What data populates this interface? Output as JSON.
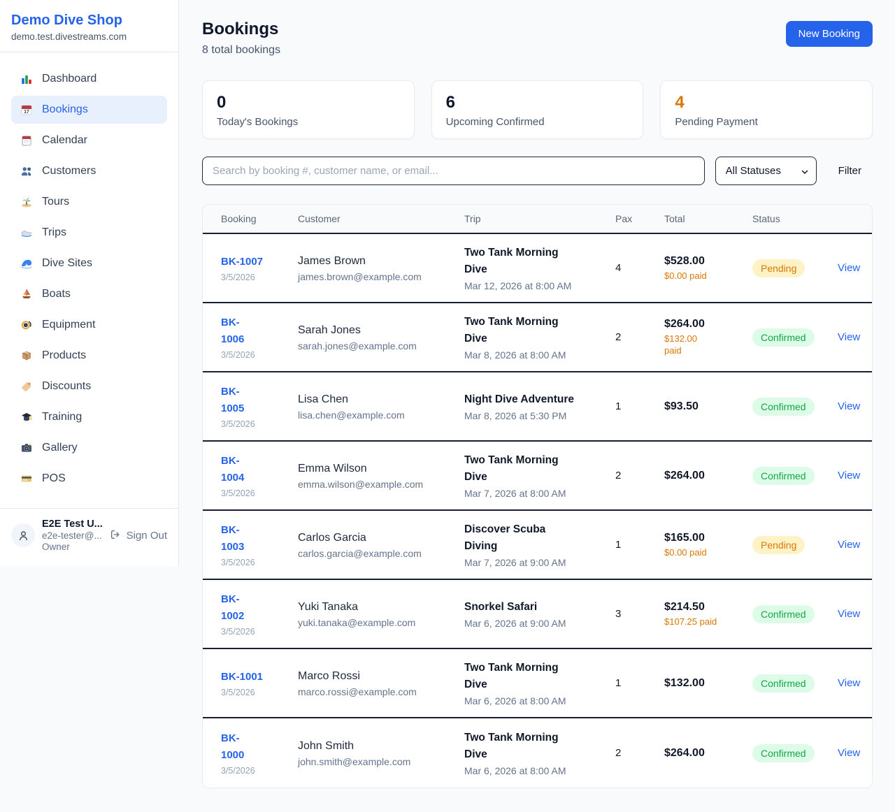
{
  "sidebar": {
    "brand": {
      "name": "Demo Dive Shop",
      "domain": "demo.test.divestreams.com"
    },
    "items": [
      {
        "label": "Dashboard",
        "icon": "dashboard",
        "active": false
      },
      {
        "label": "Bookings",
        "icon": "bookings",
        "active": true
      },
      {
        "label": "Calendar",
        "icon": "calendar",
        "active": false
      },
      {
        "label": "Customers",
        "icon": "customers",
        "active": false
      },
      {
        "label": "Tours",
        "icon": "tours",
        "active": false
      },
      {
        "label": "Trips",
        "icon": "trips",
        "active": false
      },
      {
        "label": "Dive Sites",
        "icon": "dive-sites",
        "active": false
      },
      {
        "label": "Boats",
        "icon": "boats",
        "active": false
      },
      {
        "label": "Equipment",
        "icon": "equipment",
        "active": false
      },
      {
        "label": "Products",
        "icon": "products",
        "active": false
      },
      {
        "label": "Discounts",
        "icon": "discounts",
        "active": false
      },
      {
        "label": "Training",
        "icon": "training",
        "active": false
      },
      {
        "label": "Gallery",
        "icon": "gallery",
        "active": false
      },
      {
        "label": "POS",
        "icon": "pos",
        "active": false
      }
    ],
    "user": {
      "name": "E2E Test U...",
      "email": "e2e-tester@...",
      "role": "Owner",
      "sign_out_label": "Sign Out"
    }
  },
  "header": {
    "title": "Bookings",
    "subtitle": "8 total bookings",
    "new_booking_label": "New Booking"
  },
  "stats": [
    {
      "value": "0",
      "label": "Today's Bookings",
      "value_color": "#0f172a"
    },
    {
      "value": "6",
      "label": "Upcoming Confirmed",
      "value_color": "#0f172a"
    },
    {
      "value": "4",
      "label": "Pending Payment",
      "value_color": "#d97706"
    }
  ],
  "filters": {
    "search_placeholder": "Search by booking #, customer name, or email...",
    "status_selected": "All Statuses",
    "filter_label": "Filter"
  },
  "table": {
    "columns": [
      "Booking",
      "Customer",
      "Trip",
      "Pax",
      "Total",
      "Status",
      ""
    ],
    "view_label": "View",
    "rows": [
      {
        "id": "BK-1007",
        "date": "3/5/2026",
        "customer": "James Brown",
        "email": "james.brown@example.com",
        "trip": "Two Tank Morning\nDive",
        "trip_time": "Mar 12, 2026 at 8:00 AM",
        "pax": "4",
        "total": "$528.00",
        "paid": "$0.00 paid",
        "status": "Pending"
      },
      {
        "id": "BK-\n1006",
        "date": "3/5/2026",
        "customer": "Sarah Jones",
        "email": "sarah.jones@example.com",
        "trip": "Two Tank Morning\nDive",
        "trip_time": "Mar 8, 2026 at 8:00 AM",
        "pax": "2",
        "total": "$264.00",
        "paid": "$132.00\npaid",
        "status": "Confirmed"
      },
      {
        "id": "BK-\n1005",
        "date": "3/5/2026",
        "customer": "Lisa Chen",
        "email": "lisa.chen@example.com",
        "trip": "Night Dive Adventure",
        "trip_time": "Mar 8, 2026 at 5:30 PM",
        "pax": "1",
        "total": "$93.50",
        "paid": null,
        "status": "Confirmed"
      },
      {
        "id": "BK-\n1004",
        "date": "3/5/2026",
        "customer": "Emma Wilson",
        "email": "emma.wilson@example.com",
        "trip": "Two Tank Morning\nDive",
        "trip_time": "Mar 7, 2026 at 8:00 AM",
        "pax": "2",
        "total": "$264.00",
        "paid": null,
        "status": "Confirmed"
      },
      {
        "id": "BK-\n1003",
        "date": "3/5/2026",
        "customer": "Carlos Garcia",
        "email": "carlos.garcia@example.com",
        "trip": "Discover Scuba\nDiving",
        "trip_time": "Mar 7, 2026 at 9:00 AM",
        "pax": "1",
        "total": "$165.00",
        "paid": "$0.00 paid",
        "status": "Pending"
      },
      {
        "id": "BK-\n1002",
        "date": "3/5/2026",
        "customer": "Yuki Tanaka",
        "email": "yuki.tanaka@example.com",
        "trip": "Snorkel Safari",
        "trip_time": "Mar 6, 2026 at 9:00 AM",
        "pax": "3",
        "total": "$214.50",
        "paid": "$107.25 paid",
        "status": "Confirmed"
      },
      {
        "id": "BK-1001",
        "date": "3/5/2026",
        "customer": "Marco Rossi",
        "email": "marco.rossi@example.com",
        "trip": "Two Tank Morning\nDive",
        "trip_time": "Mar 6, 2026 at 8:00 AM",
        "pax": "1",
        "total": "$132.00",
        "paid": null,
        "status": "Confirmed"
      },
      {
        "id": "BK-\n1000",
        "date": "3/5/2026",
        "customer": "John Smith",
        "email": "john.smith@example.com",
        "trip": "Two Tank Morning\nDive",
        "trip_time": "Mar 6, 2026 at 8:00 AM",
        "pax": "2",
        "total": "$264.00",
        "paid": null,
        "status": "Confirmed"
      }
    ]
  },
  "colors": {
    "accent": "#2563eb",
    "pending_text": "#d97706",
    "pending_bg": "#fef3c7",
    "confirmed_text": "#16a34a",
    "confirmed_bg": "#dcfce7",
    "paid_amount": "#d97706"
  }
}
